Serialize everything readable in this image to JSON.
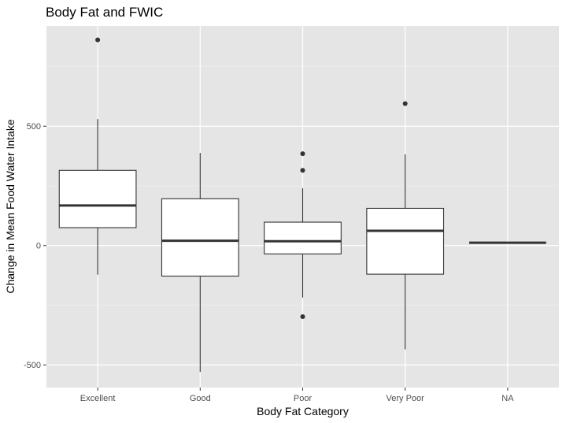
{
  "chart_data": {
    "type": "boxplot",
    "title": "Body Fat and FWIC",
    "xlabel": "Body Fat Category",
    "ylabel": "Change in Mean Food Water Intake",
    "categories": [
      "Excellent",
      "Good",
      "Poor",
      "Very Poor",
      "NA"
    ],
    "ylim": [
      -595,
      920
    ],
    "yticks": [
      -500,
      0,
      500
    ],
    "ytick_labels": [
      "-500",
      "0",
      "500"
    ],
    "grid": true,
    "colors": {
      "panel": "#e5e5e5",
      "grid_major": "#ffffff",
      "box_fill": "#ffffff",
      "box_stroke": "#333333",
      "outlier": "#333333"
    },
    "boxes": [
      {
        "category": "Excellent",
        "whisker_low": -122,
        "q1": 75,
        "median": 168,
        "q3": 315,
        "whisker_high": 530,
        "outliers": [
          862
        ]
      },
      {
        "category": "Good",
        "whisker_low": -530,
        "q1": -128,
        "median": 20,
        "q3": 196,
        "whisker_high": 388,
        "outliers": []
      },
      {
        "category": "Poor",
        "whisker_low": -218,
        "q1": -35,
        "median": 18,
        "q3": 98,
        "whisker_high": 240,
        "outliers": [
          385,
          315,
          -298
        ]
      },
      {
        "category": "Very Poor",
        "whisker_low": -435,
        "q1": -120,
        "median": 62,
        "q3": 156,
        "whisker_high": 382,
        "outliers": [
          595
        ]
      },
      {
        "category": "NA",
        "whisker_low": 12,
        "q1": 12,
        "median": 12,
        "q3": 12,
        "whisker_high": 12,
        "outliers": []
      }
    ]
  }
}
